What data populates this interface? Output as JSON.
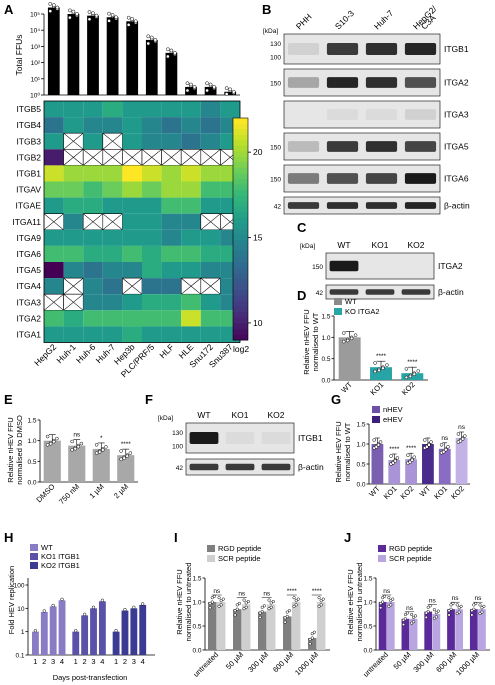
{
  "panels": {
    "A": {
      "label": "A",
      "bar": {
        "ylabel": "Total FFUs",
        "yticks": [
          "10⁰",
          "10¹",
          "10²",
          "10³",
          "10⁴",
          "10⁵"
        ],
        "values": [
          5.4,
          5.0,
          4.9,
          4.8,
          4.55,
          3.4,
          2.6,
          0.5,
          0.5,
          0.2
        ]
      },
      "heatmap": {
        "rows": [
          "ITGB5",
          "ITGB4",
          "ITGB3",
          "ITGB2",
          "ITGB1",
          "ITGAV",
          "ITGAE",
          "ITGA11",
          "ITGA9",
          "ITGA6",
          "ITGA5",
          "ITGA4",
          "ITGA3",
          "ITGA2",
          "ITGA1"
        ],
        "cols": [
          "HepG2",
          "Huh-1",
          "Huh-6",
          "Huh-7",
          "Hep3b",
          "PLC/PRF/5",
          "HLF",
          "HLE",
          "Snu172",
          "Snu387"
        ],
        "values": [
          [
            16,
            16,
            16,
            17,
            16,
            16,
            16,
            16,
            15,
            16
          ],
          [
            14,
            16,
            15,
            15,
            16,
            15,
            14,
            15,
            14,
            15
          ],
          [
            16,
            null,
            16,
            null,
            16,
            15,
            15,
            14,
            15,
            16
          ],
          [
            10,
            null,
            null,
            null,
            null,
            null,
            null,
            null,
            null,
            null
          ],
          [
            21,
            20,
            20,
            20,
            22,
            21,
            20,
            21,
            20,
            20
          ],
          [
            19,
            19,
            18,
            19,
            20,
            19,
            20,
            20,
            18,
            18
          ],
          [
            16,
            17,
            17,
            16,
            16,
            16,
            18,
            18,
            16,
            16
          ],
          [
            null,
            15,
            null,
            null,
            16,
            16,
            15,
            15,
            null,
            null
          ],
          [
            16,
            16,
            16,
            16,
            16,
            16,
            15,
            16,
            16,
            15
          ],
          [
            18,
            18,
            17,
            17,
            18,
            17,
            18,
            18,
            17,
            17
          ],
          [
            9,
            15,
            14,
            15,
            15,
            17,
            16,
            16,
            15,
            15
          ],
          [
            15,
            null,
            15,
            14,
            null,
            14,
            14,
            null,
            null,
            15
          ],
          [
            null,
            null,
            15,
            15,
            16,
            17,
            17,
            18,
            16,
            15
          ],
          [
            18,
            17,
            18,
            18,
            18,
            18,
            18,
            21,
            18,
            18
          ],
          [
            16,
            16,
            16,
            16,
            17,
            16,
            16,
            16,
            16,
            16
          ]
        ],
        "colorbar": {
          "ticks": [
            "20",
            "15",
            "10"
          ],
          "label": "log2"
        }
      }
    },
    "B": {
      "label": "B",
      "kda": "[kDa]",
      "lanes": [
        "PHH",
        "S10-3",
        "Huh-7",
        "HepG2/\nC3A"
      ],
      "blots": [
        {
          "name": "ITGB1",
          "marks": [
            "130",
            "100"
          ]
        },
        {
          "name": "ITGA2",
          "marks": [
            "150"
          ]
        },
        {
          "name": "ITGA3",
          "marks": []
        },
        {
          "name": "ITGA5",
          "marks": [
            "150"
          ]
        },
        {
          "name": "ITGA6",
          "marks": [
            "150"
          ]
        },
        {
          "name": "β-actin",
          "marks": [
            "42"
          ]
        }
      ]
    },
    "C": {
      "label": "C",
      "kda": "[kDa]",
      "lanes": [
        "WT",
        "KO1",
        "KO2"
      ],
      "blots": [
        {
          "name": "ITGA2",
          "marks": [
            "150"
          ]
        },
        {
          "name": "β-actin",
          "marks": [
            "42"
          ]
        }
      ]
    },
    "D": {
      "label": "D",
      "ylabel1": "Relative nHEV FFU",
      "ylabel2": "normalised to WT",
      "legend": [
        "WT",
        "KO ITGA2"
      ],
      "yticks": [
        "0.0",
        "0.5",
        "1.0",
        "1.5"
      ],
      "categories": [
        "WT",
        "KO1",
        "KO2"
      ],
      "values": [
        1.0,
        0.3,
        0.16
      ],
      "sig": [
        "",
        "****",
        "****"
      ]
    },
    "E": {
      "label": "E",
      "ylabel1": "Relative nHEV FFU",
      "ylabel2": "normalised to DMSO",
      "yticks": [
        "0.0",
        "0.5",
        "1.0",
        "1.5"
      ],
      "categories": [
        "DMSO",
        "750 nM",
        "1 µM",
        "2 µM"
      ],
      "values": [
        1.0,
        0.88,
        0.8,
        0.65
      ],
      "sig": [
        "",
        "ns",
        "*",
        "****"
      ]
    },
    "F": {
      "label": "F",
      "kda": "[kDa]",
      "lanes": [
        "WT",
        "KO1",
        "KO2"
      ],
      "blots": [
        {
          "name": "ITGB1",
          "marks": [
            "130",
            "100"
          ]
        },
        {
          "name": "β-actin",
          "marks": [
            "42"
          ]
        }
      ]
    },
    "G": {
      "label": "G",
      "ylabel1": "Relative HEV FFU",
      "ylabel2": "normalised to WT",
      "legend": [
        "nHEV",
        "eHEV"
      ],
      "yticks": [
        "0.0",
        "0.5",
        "1.0",
        "1.5"
      ],
      "categories": [
        "WT",
        "KO1",
        "KO2",
        "WT",
        "KO1",
        "KO2"
      ],
      "values": [
        1.0,
        0.6,
        0.62,
        1.0,
        0.88,
        1.15
      ],
      "sig": [
        "",
        "****",
        "****",
        "",
        "ns",
        "ns"
      ]
    },
    "H": {
      "label": "H",
      "ylabel": "Fold HEV replication",
      "xlabel": "Days post-transfection",
      "legend": [
        "WT",
        "KO1 ITGB1",
        "KO2 ITGB1"
      ],
      "yticks": [
        "0.1",
        "1",
        "10",
        "100"
      ],
      "days": [
        "1",
        "2",
        "3",
        "4"
      ],
      "series": [
        {
          "name": "WT",
          "values": [
            1,
            7,
            12,
            22
          ]
        },
        {
          "name": "KO1 ITGB1",
          "values": [
            1,
            5,
            10,
            20
          ]
        },
        {
          "name": "KO2 ITGB1",
          "values": [
            1,
            8,
            10,
            14
          ]
        }
      ]
    },
    "I": {
      "label": "I",
      "ylabel1": "Relative nHEV FFU",
      "ylabel2": "normalised to untreated",
      "legend": [
        "RGD peptide",
        "SCR peptide"
      ],
      "yticks": [
        "0.0",
        "0.5",
        "1.0",
        "1.5"
      ],
      "categories": [
        "untreated",
        "50 µM",
        "300 µM",
        "600 µM",
        "1000 µM"
      ],
      "rgd": [
        1.0,
        0.85,
        0.8,
        0.7,
        0.25
      ],
      "scr": [
        1.0,
        0.95,
        0.95,
        1.0,
        1.0
      ],
      "sig": [
        "ns",
        "ns",
        "ns",
        "****",
        "****"
      ]
    },
    "J": {
      "label": "J",
      "ylabel1": "Relative eHEV FFU",
      "ylabel2": "normalised to untreated",
      "legend": [
        "RGD peptide",
        "SCR peptide"
      ],
      "yticks": [
        "0.0",
        "0.5",
        "1.0",
        "1.5"
      ],
      "categories": [
        "untreated",
        "50 µM",
        "300 µM",
        "600 µM",
        "1000 µM"
      ],
      "rgd": [
        1.0,
        0.65,
        0.8,
        0.85,
        0.85
      ],
      "scr": [
        1.0,
        0.65,
        0.75,
        0.85,
        0.85
      ],
      "sig": [
        "ns",
        "ns",
        "ns",
        "ns",
        "ns"
      ]
    }
  }
}
